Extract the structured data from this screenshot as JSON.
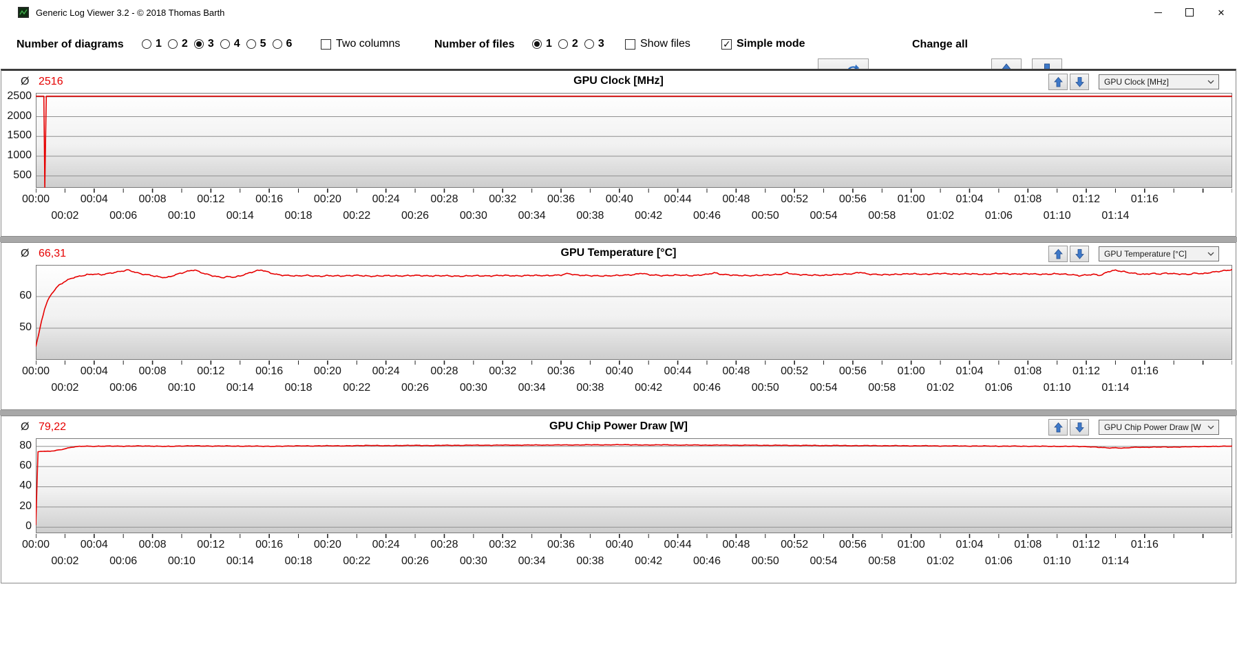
{
  "window": {
    "title": "Generic Log Viewer 3.2 - © 2018 Thomas Barth",
    "controls": {
      "minimize": "minimize",
      "maximize": "maximize",
      "close": "✕"
    }
  },
  "toolbar": {
    "diagrams_label": "Number of diagrams",
    "diagram_options": [
      {
        "label": "1",
        "selected": false
      },
      {
        "label": "2",
        "selected": false
      },
      {
        "label": "3",
        "selected": true
      },
      {
        "label": "4",
        "selected": false
      },
      {
        "label": "5",
        "selected": false
      },
      {
        "label": "6",
        "selected": false
      }
    ],
    "two_columns": {
      "label": "Two columns",
      "checked": false
    },
    "files_label": "Number of files",
    "file_options": [
      {
        "label": "1",
        "selected": true
      },
      {
        "label": "2",
        "selected": false
      },
      {
        "label": "3",
        "selected": false
      }
    ],
    "show_files": {
      "label": "Show files",
      "checked": false
    },
    "simple_mode": {
      "label": "Simple mode",
      "checked": true
    },
    "change_all_label": "Change all",
    "accent_red": "#e8112d",
    "arrow_blue": "#3e79c9"
  },
  "time_axis": {
    "t_max": 82,
    "tick_interval_min": 2,
    "row1_labels": [
      "00:00",
      "00:04",
      "00:08",
      "00:12",
      "00:16",
      "00:20",
      "00:24",
      "00:28",
      "00:32",
      "00:36",
      "00:40",
      "00:44",
      "00:48",
      "00:52",
      "00:56",
      "01:00",
      "01:04",
      "01:08",
      "01:12",
      "01:16"
    ],
    "row2_labels": [
      "00:02",
      "00:06",
      "00:10",
      "00:14",
      "00:18",
      "00:22",
      "00:26",
      "00:30",
      "00:34",
      "00:38",
      "00:42",
      "00:46",
      "00:50",
      "00:54",
      "00:58",
      "01:02",
      "01:06",
      "01:10",
      "01:14"
    ]
  },
  "chart_data": [
    {
      "type": "line",
      "title": "GPU Clock [MHz]",
      "selected_metric": "GPU Clock [MHz]",
      "average_symbol": "Ø",
      "average_display": "2516",
      "line_color": "#e60000",
      "grid": true,
      "legend": false,
      "ylim": [
        200,
        2600
      ],
      "yticks": [
        {
          "v": 500,
          "label": "500"
        },
        {
          "v": 1000,
          "label": "1000"
        },
        {
          "v": 1500,
          "label": "1500"
        },
        {
          "v": 2000,
          "label": "2000"
        },
        {
          "v": 2500,
          "label": "2500"
        }
      ],
      "noise_amplitude": 0,
      "points": [
        [
          0,
          2516
        ],
        [
          0.55,
          2516
        ],
        [
          0.62,
          215
        ],
        [
          0.72,
          2516
        ],
        [
          82,
          2516
        ]
      ]
    },
    {
      "type": "line",
      "title": "GPU Temperature [°C]",
      "selected_metric": "GPU Temperature [°C]",
      "average_symbol": "Ø",
      "average_display": "66,31",
      "line_color": "#e60000",
      "grid": true,
      "legend": false,
      "ylim": [
        40,
        70
      ],
      "yticks": [
        {
          "v": 50,
          "label": "50"
        },
        {
          "v": 60,
          "label": "60"
        }
      ],
      "noise_amplitude": 0.22,
      "points": [
        [
          0,
          44.2
        ],
        [
          0.2,
          48
        ],
        [
          0.4,
          52.5
        ],
        [
          0.6,
          56
        ],
        [
          0.8,
          58.5
        ],
        [
          1,
          60.3
        ],
        [
          1.3,
          62.2
        ],
        [
          1.6,
          63.6
        ],
        [
          2,
          64.8
        ],
        [
          2.5,
          65.9
        ],
        [
          3,
          66.4
        ],
        [
          3.5,
          66.9
        ],
        [
          4,
          67.1
        ],
        [
          4.5,
          66.9
        ],
        [
          5,
          67.3
        ],
        [
          5.5,
          67.7
        ],
        [
          6,
          68.1
        ],
        [
          6.3,
          68.4
        ],
        [
          6.6,
          68
        ],
        [
          7,
          67.4
        ],
        [
          7.4,
          67
        ],
        [
          7.8,
          66.8
        ],
        [
          8.2,
          66.4
        ],
        [
          8.6,
          66.1
        ],
        [
          9,
          66
        ],
        [
          9.4,
          66.6
        ],
        [
          9.8,
          67.2
        ],
        [
          10.2,
          67.7
        ],
        [
          10.6,
          68.2
        ],
        [
          10.9,
          68.4
        ],
        [
          11.2,
          67.8
        ],
        [
          11.6,
          67.2
        ],
        [
          12,
          66.7
        ],
        [
          12.4,
          66.3
        ],
        [
          12.8,
          66
        ],
        [
          13.2,
          66.3
        ],
        [
          13.6,
          66.1
        ],
        [
          14,
          66.5
        ],
        [
          14.4,
          67.1
        ],
        [
          14.8,
          67.7
        ],
        [
          15.2,
          68.2
        ],
        [
          15.5,
          68.4
        ],
        [
          15.8,
          67.9
        ],
        [
          16.2,
          67.3
        ],
        [
          16.6,
          66.9
        ],
        [
          17,
          66.7
        ],
        [
          17.5,
          66.6
        ],
        [
          18,
          66.5
        ],
        [
          18.5,
          66.7
        ],
        [
          19,
          66.5
        ],
        [
          19.5,
          66.4
        ],
        [
          20,
          66.6
        ],
        [
          21,
          66.5
        ],
        [
          22,
          66.7
        ],
        [
          23,
          66.4
        ],
        [
          24,
          66.6
        ],
        [
          25,
          66.5
        ],
        [
          26,
          66.7
        ],
        [
          27,
          66.5
        ],
        [
          28,
          66.6
        ],
        [
          29,
          66.4
        ],
        [
          30,
          66.6
        ],
        [
          31,
          66.5
        ],
        [
          32,
          66.7
        ],
        [
          33,
          66.5
        ],
        [
          34,
          66.7
        ],
        [
          35,
          66.6
        ],
        [
          36,
          66.8
        ],
        [
          36.5,
          67.3
        ],
        [
          37,
          66.8
        ],
        [
          38,
          66.6
        ],
        [
          39,
          66.5
        ],
        [
          40,
          66.7
        ],
        [
          41,
          66.9
        ],
        [
          41.5,
          67.4
        ],
        [
          42,
          66.9
        ],
        [
          43,
          66.6
        ],
        [
          44,
          66.8
        ],
        [
          45,
          66.6
        ],
        [
          46,
          67
        ],
        [
          46.5,
          67.5
        ],
        [
          47,
          67
        ],
        [
          48,
          66.7
        ],
        [
          49,
          66.6
        ],
        [
          50,
          66.8
        ],
        [
          51,
          67
        ],
        [
          51.5,
          67.5
        ],
        [
          52,
          67
        ],
        [
          53,
          66.8
        ],
        [
          54,
          66.7
        ],
        [
          55,
          67
        ],
        [
          56,
          67.2
        ],
        [
          56.5,
          67.7
        ],
        [
          57,
          67.1
        ],
        [
          58,
          66.9
        ],
        [
          59,
          67
        ],
        [
          60,
          67.2
        ],
        [
          61,
          67
        ],
        [
          62,
          67.3
        ],
        [
          63,
          67.1
        ],
        [
          64,
          67.2
        ],
        [
          65,
          67
        ],
        [
          66,
          67.3
        ],
        [
          67,
          67.1
        ],
        [
          68,
          67.2
        ],
        [
          69,
          67
        ],
        [
          70,
          67.2
        ],
        [
          71,
          66.9
        ],
        [
          71.5,
          66.6
        ],
        [
          72,
          66.8
        ],
        [
          72.5,
          67
        ],
        [
          73,
          66.7
        ],
        [
          73.5,
          67.9
        ],
        [
          74,
          68.3
        ],
        [
          74.5,
          67.9
        ],
        [
          75,
          67.5
        ],
        [
          75.5,
          67.2
        ],
        [
          76,
          67
        ],
        [
          76.5,
          67.3
        ],
        [
          77,
          67.1
        ],
        [
          77.5,
          67.4
        ],
        [
          78,
          67.2
        ],
        [
          79,
          67
        ],
        [
          79.5,
          67.4
        ],
        [
          80,
          67.2
        ],
        [
          80.5,
          67.6
        ],
        [
          81,
          67.9
        ],
        [
          81.5,
          68.2
        ],
        [
          82,
          68.5
        ]
      ]
    },
    {
      "type": "line",
      "title": "GPU Chip Power Draw [W]",
      "selected_metric": "GPU Chip Power Draw [W",
      "average_symbol": "Ø",
      "average_display": "79,22",
      "line_color": "#e60000",
      "grid": true,
      "legend": false,
      "ylim": [
        -6,
        88
      ],
      "yticks": [
        {
          "v": 0,
          "label": "0"
        },
        {
          "v": 20,
          "label": "20"
        },
        {
          "v": 40,
          "label": "40"
        },
        {
          "v": 60,
          "label": "60"
        },
        {
          "v": 80,
          "label": "80"
        }
      ],
      "noise_amplitude": 0.3,
      "points": [
        [
          0,
          2
        ],
        [
          0.15,
          74.5
        ],
        [
          0.5,
          75.3
        ],
        [
          0.9,
          75
        ],
        [
          1.3,
          75.8
        ],
        [
          1.7,
          76.6
        ],
        [
          2.1,
          78
        ],
        [
          2.5,
          79.2
        ],
        [
          2.9,
          79.9
        ],
        [
          3.3,
          80.2
        ],
        [
          4,
          80
        ],
        [
          5,
          80.3
        ],
        [
          6,
          80.1
        ],
        [
          7,
          80.4
        ],
        [
          8,
          80.2
        ],
        [
          9,
          80
        ],
        [
          10,
          80.3
        ],
        [
          11,
          80.5
        ],
        [
          12,
          80.2
        ],
        [
          13,
          80.4
        ],
        [
          14,
          80.1
        ],
        [
          15,
          80.3
        ],
        [
          16,
          80
        ],
        [
          17,
          80.2
        ],
        [
          18,
          80.5
        ],
        [
          19,
          80.3
        ],
        [
          20,
          80.6
        ],
        [
          21,
          80.4
        ],
        [
          22,
          80.7
        ],
        [
          23,
          80.9
        ],
        [
          24,
          80.6
        ],
        [
          25,
          80.8
        ],
        [
          26,
          81
        ],
        [
          27,
          80.7
        ],
        [
          28,
          81.1
        ],
        [
          29,
          80.9
        ],
        [
          30,
          81.2
        ],
        [
          31,
          81
        ],
        [
          32,
          81.3
        ],
        [
          33,
          81.1
        ],
        [
          34,
          81.4
        ],
        [
          35,
          81.2
        ],
        [
          36,
          81.5
        ],
        [
          37,
          81.3
        ],
        [
          38,
          81.6
        ],
        [
          39,
          81.4
        ],
        [
          40,
          81.7
        ],
        [
          41,
          81.5
        ],
        [
          42,
          81.3
        ],
        [
          43,
          81.6
        ],
        [
          44,
          81.2
        ],
        [
          45,
          81.4
        ],
        [
          46,
          81.1
        ],
        [
          47,
          81.3
        ],
        [
          48,
          81
        ],
        [
          49,
          81.2
        ],
        [
          50,
          80.9
        ],
        [
          51,
          81.1
        ],
        [
          52,
          80.8
        ],
        [
          53,
          81
        ],
        [
          54,
          80.7
        ],
        [
          55,
          80.9
        ],
        [
          56,
          80.6
        ],
        [
          57,
          80.8
        ],
        [
          58,
          80.5
        ],
        [
          59,
          80.7
        ],
        [
          60,
          80.4
        ],
        [
          61,
          80.6
        ],
        [
          62,
          80.3
        ],
        [
          63,
          80.5
        ],
        [
          64,
          80.2
        ],
        [
          65,
          80.4
        ],
        [
          66,
          80.1
        ],
        [
          67,
          80.3
        ],
        [
          68,
          80
        ],
        [
          69,
          80.2
        ],
        [
          70,
          79.9
        ],
        [
          71,
          80.1
        ],
        [
          72,
          79.7
        ],
        [
          73,
          79
        ],
        [
          73.5,
          78.4
        ],
        [
          74,
          78.6
        ],
        [
          74.5,
          78.2
        ],
        [
          75,
          78.8
        ],
        [
          75.5,
          79.2
        ],
        [
          76,
          79
        ],
        [
          77,
          79.4
        ],
        [
          78,
          79.2
        ],
        [
          79,
          79.6
        ],
        [
          80,
          79.8
        ],
        [
          81,
          80
        ],
        [
          82,
          80.3
        ]
      ]
    }
  ]
}
